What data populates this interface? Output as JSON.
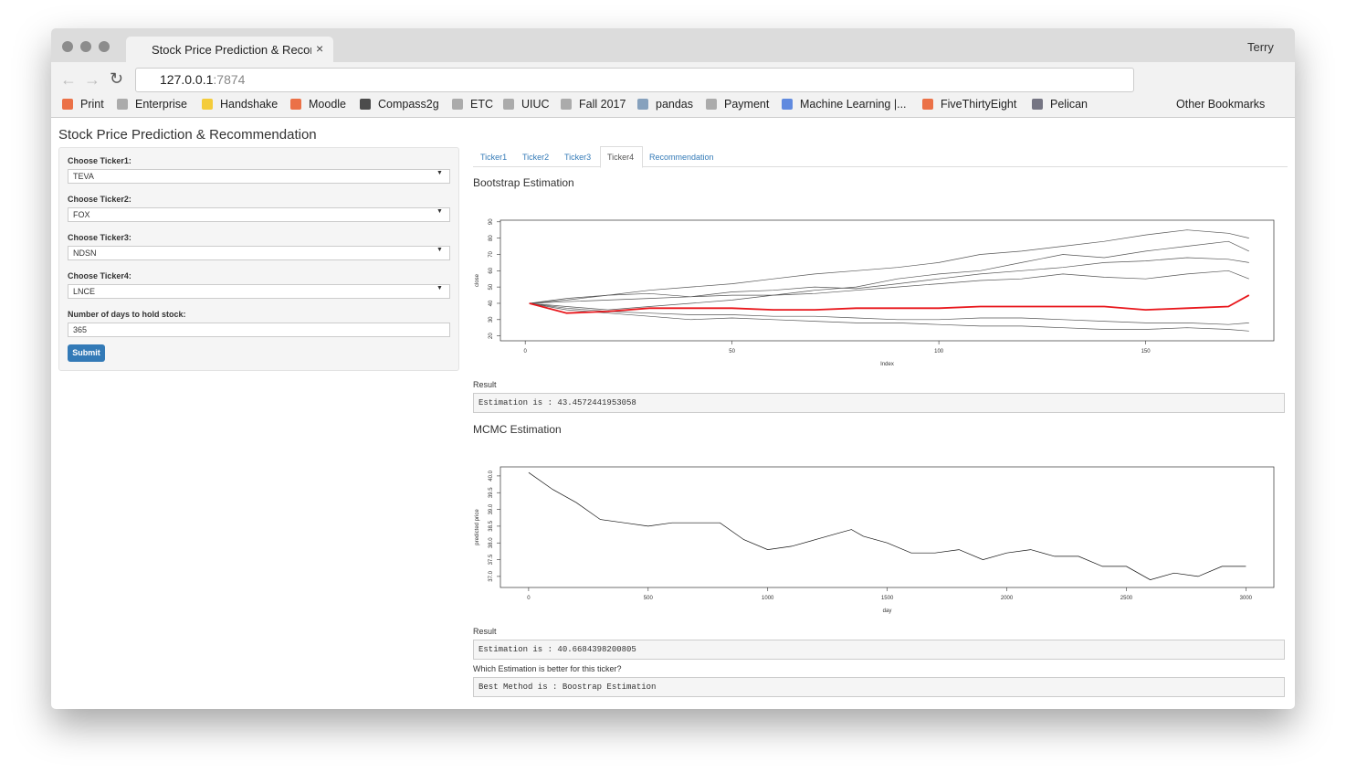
{
  "browser": {
    "tab_title": "Stock Price Prediction & Recor",
    "user": "Terry",
    "url_host": "127.0.0.1",
    "url_port": ":7874",
    "bookmarks": [
      "Print",
      "Enterprise",
      "Handshake",
      "Moodle",
      "Compass2g",
      "ETC",
      "UIUC",
      "Fall 2017",
      "pandas",
      "Payment",
      "Machine Learning |...",
      "FiveThirtyEight",
      "Pelican"
    ],
    "other_bookmarks": "Other Bookmarks"
  },
  "app": {
    "title": "Stock Price Prediction & Recommendation",
    "inputs": [
      {
        "label": "Choose Ticker1:",
        "value": "TEVA"
      },
      {
        "label": "Choose Ticker2:",
        "value": "FOX"
      },
      {
        "label": "Choose Ticker3:",
        "value": "NDSN"
      },
      {
        "label": "Choose Ticker4:",
        "value": "LNCE"
      },
      {
        "label": "Number of days to hold stock:",
        "value": "365"
      }
    ],
    "submit": "Submit",
    "tabs": [
      "Ticker1",
      "Ticker2",
      "Ticker3",
      "Ticker4",
      "Recommendation"
    ],
    "bootstrap": {
      "heading": "Bootstrap Estimation",
      "result_label": "Result",
      "result": "Estimation is :  43.4572441953058"
    },
    "mcmc": {
      "heading": "MCMC Estimation",
      "result_label": "Result",
      "result": "Estimation is :  40.6684398200805"
    },
    "best_label": "Which Estimation is better for this ticker?",
    "best": "Best Method is :  Boostrap Estimation"
  },
  "chart_data": [
    {
      "type": "line",
      "x_label": "Index",
      "y_label": "close",
      "xlim": [
        -6,
        181
      ],
      "ylim": [
        17,
        91
      ],
      "xticks": [
        0,
        50,
        100,
        150
      ],
      "yticks": [
        20,
        30,
        40,
        50,
        60,
        70,
        80,
        90
      ],
      "x": [
        1,
        10,
        20,
        30,
        40,
        50,
        60,
        70,
        80,
        90,
        100,
        110,
        120,
        130,
        140,
        150,
        160,
        170,
        175
      ],
      "series": [
        {
          "color": "#555555",
          "values": [
            40,
            42,
            45,
            48,
            50,
            52,
            55,
            58,
            60,
            62,
            65,
            70,
            72,
            75,
            78,
            82,
            85,
            83,
            80
          ]
        },
        {
          "color": "#555555",
          "values": [
            40,
            38,
            36,
            38,
            40,
            42,
            45,
            48,
            50,
            55,
            58,
            60,
            65,
            70,
            68,
            72,
            75,
            78,
            72
          ]
        },
        {
          "color": "#555555",
          "values": [
            40,
            36,
            34,
            32,
            30,
            31,
            30,
            29,
            28,
            28,
            27,
            26,
            26,
            25,
            24,
            24,
            25,
            24,
            23
          ]
        },
        {
          "color": "#555555",
          "values": [
            40,
            41,
            42,
            43,
            44,
            45,
            45,
            46,
            48,
            50,
            52,
            54,
            55,
            58,
            56,
            55,
            58,
            60,
            55
          ]
        },
        {
          "color": "#555555",
          "values": [
            40,
            37,
            35,
            34,
            33,
            33,
            32,
            32,
            31,
            30,
            30,
            31,
            31,
            30,
            29,
            28,
            28,
            27,
            28
          ]
        },
        {
          "color": "#555555",
          "values": [
            40,
            43,
            45,
            46,
            44,
            47,
            48,
            50,
            49,
            52,
            55,
            58,
            60,
            62,
            65,
            66,
            68,
            67,
            65
          ]
        },
        {
          "color": "#e8161b",
          "values": [
            40,
            34,
            35,
            37,
            37,
            37,
            36,
            36,
            37,
            37,
            37,
            38,
            38,
            38,
            38,
            36,
            37,
            38,
            45
          ]
        }
      ]
    },
    {
      "type": "line",
      "x_label": "day",
      "y_label": "predicted price",
      "xlim": [
        -118,
        3117
      ],
      "ylim": [
        36.67,
        40.27
      ],
      "xticks": [
        0,
        500,
        1000,
        1500,
        2000,
        2500,
        3000
      ],
      "yticks": [
        {
          "value": 37,
          "label": "37.0"
        },
        37.5,
        {
          "value": 38,
          "label": "38.0"
        },
        38.5,
        {
          "value": 39,
          "label": "39.0"
        },
        39.5,
        {
          "value": 40,
          "label": "40.0"
        }
      ],
      "x": [
        0,
        100,
        200,
        300,
        400,
        500,
        600,
        700,
        800,
        900,
        1000,
        1100,
        1200,
        1300,
        1350,
        1400,
        1500,
        1600,
        1700,
        1800,
        1900,
        2000,
        2100,
        2200,
        2300,
        2400,
        2500,
        2600,
        2700,
        2800,
        2900,
        3000
      ],
      "series": [
        {
          "color": "#111111",
          "values": [
            40.1,
            39.6,
            39.2,
            38.7,
            38.6,
            38.5,
            38.6,
            38.6,
            38.6,
            38.1,
            37.8,
            37.9,
            38.1,
            38.3,
            38.4,
            38.2,
            38.0,
            37.7,
            37.7,
            37.8,
            37.5,
            37.7,
            37.8,
            37.6,
            37.6,
            37.3,
            37.3,
            36.9,
            37.1,
            37.0,
            37.3,
            37.3
          ]
        }
      ]
    }
  ]
}
